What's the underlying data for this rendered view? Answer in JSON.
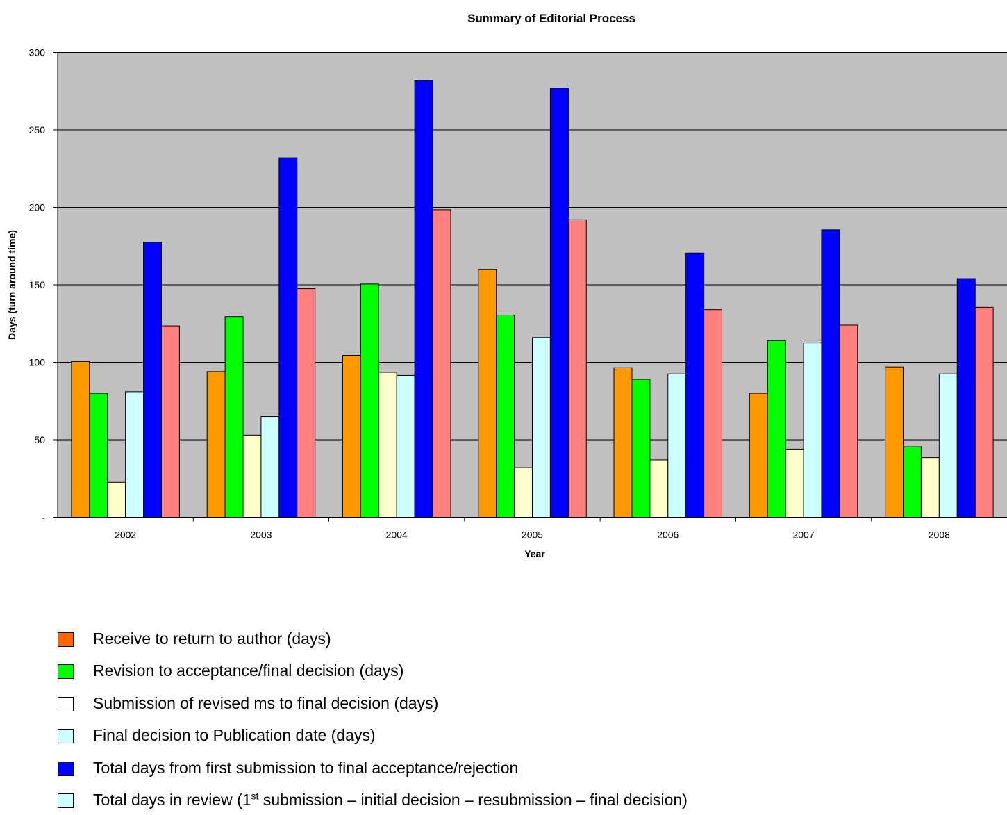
{
  "chart_data": {
    "type": "bar",
    "title": "Summary of Editorial Process",
    "xlabel": "Year",
    "ylabel": "Days (turn around time)",
    "ylim": [
      0,
      300
    ],
    "yticks": [
      {
        "value": 0,
        "label": "-"
      },
      {
        "value": 50,
        "label": "50"
      },
      {
        "value": 100,
        "label": "100"
      },
      {
        "value": 150,
        "label": "150"
      },
      {
        "value": 200,
        "label": "200"
      },
      {
        "value": 250,
        "label": "250"
      },
      {
        "value": 300,
        "label": "300"
      }
    ],
    "grid": true,
    "legend_position": "bottom",
    "plot_background": "#C0C0C0",
    "categories": [
      "2002",
      "2003",
      "2004",
      "2005",
      "2006",
      "2007",
      "2008"
    ],
    "series": [
      {
        "name": "Receive to return to author (days)",
        "color": "#FF9900",
        "legend_color": "#FF6600",
        "values": [
          100.5,
          94,
          104.5,
          160,
          96.5,
          80,
          97
        ]
      },
      {
        "name": "Revision to acceptance/final decision (days)",
        "color": "#00FF00",
        "legend_color": "#00FF00",
        "values": [
          80,
          129.5,
          150.5,
          130.5,
          89,
          114,
          45.5
        ]
      },
      {
        "name": "Submission of revised ms to final decision (days)",
        "color": "#FFFFCC",
        "legend_color": "#FFFFFF",
        "values": [
          22.5,
          53,
          93.5,
          32,
          37,
          44,
          38.5
        ]
      },
      {
        "name": "Final decision to Publication date (days)",
        "color": "#CCFFFF",
        "legend_color": "#CCFFFF",
        "values": [
          81,
          65,
          91.5,
          116,
          92.5,
          112.5,
          92.5
        ]
      },
      {
        "name": "Total days from first submission to final acceptance/rejection",
        "color": "#0000FF",
        "legend_color": "#0000FF",
        "values": [
          177.5,
          232,
          282,
          277,
          170.5,
          185.5,
          154
        ]
      },
      {
        "name_parts": [
          "Total days in review (1",
          "st",
          " submission – initial decision – resubmission – final decision)"
        ],
        "color": "#FF8080",
        "legend_color": "#CCFFFF",
        "values": [
          123.5,
          147.5,
          198.5,
          192,
          134,
          124,
          135.5
        ]
      }
    ]
  }
}
